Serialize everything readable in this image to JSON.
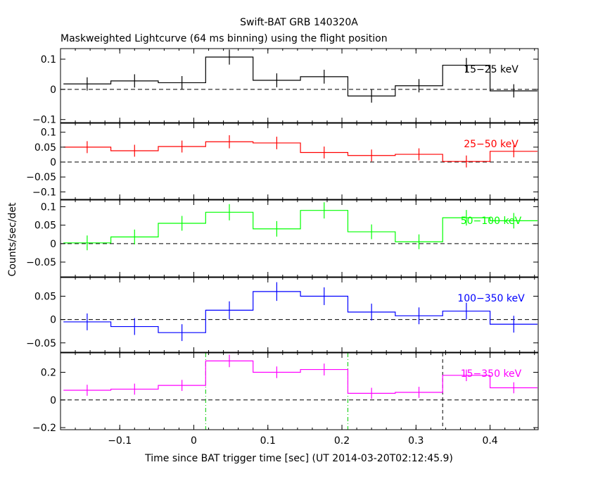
{
  "title": "Swift-BAT GRB 140320A",
  "subtitle": "Maskweighted Lightcurve (64 ms binning) using the flight position",
  "chart_data": {
    "type": "line",
    "style": "step histogram with error bars, stacked panels",
    "xlabel": "Time since BAT trigger time [sec] (UT 2014-03-20T02:12:45.9)",
    "ylabel": "Counts/sec/det",
    "xlim": [
      -0.18,
      0.465
    ],
    "x_ticks": [
      -0.1,
      0,
      0.1,
      0.2,
      0.3,
      0.4
    ],
    "x_tick_labels": [
      "−0.1",
      "0",
      "0.1",
      "0.2",
      "0.3",
      "0.4"
    ],
    "bin_edges": [
      -0.176,
      -0.112,
      -0.048,
      0.016,
      0.08,
      0.144,
      0.208,
      0.272,
      0.336,
      0.4,
      0.464
    ],
    "vertical_markers": [
      {
        "x": 0.016,
        "color": "#00cc00",
        "style": "dash-dot"
      },
      {
        "x": 0.208,
        "color": "#00cc00",
        "style": "dash-dot"
      },
      {
        "x": 0.336,
        "color": "#000000",
        "style": "dashed"
      }
    ],
    "panels": [
      {
        "name": "15−25 keV",
        "color": "#000000",
        "ylim": [
          -0.11,
          0.135
        ],
        "y_ticks": [
          -0.1,
          0,
          0.1
        ],
        "y_tick_labels": [
          "−0.1",
          "0",
          "0.1"
        ],
        "values": [
          0.018,
          0.028,
          0.022,
          0.107,
          0.03,
          0.042,
          -0.022,
          0.012,
          0.08,
          -0.005
        ],
        "errors": [
          0.022,
          0.022,
          0.022,
          0.025,
          0.023,
          0.023,
          0.022,
          0.022,
          0.024,
          0.022
        ]
      },
      {
        "name": "25−50 keV",
        "color": "#ff0000",
        "ylim": [
          -0.125,
          0.13
        ],
        "y_ticks": [
          -0.1,
          -0.05,
          0,
          0.05,
          0.1
        ],
        "y_tick_labels": [
          "−0.1",
          "−0.05",
          "0",
          "0.05",
          "0.1"
        ],
        "values": [
          0.05,
          0.038,
          0.052,
          0.068,
          0.064,
          0.032,
          0.022,
          0.026,
          0.002,
          0.036
        ],
        "errors": [
          0.02,
          0.02,
          0.02,
          0.022,
          0.021,
          0.02,
          0.02,
          0.02,
          0.02,
          0.02
        ]
      },
      {
        "name": "50−100 keV",
        "color": "#00ff00",
        "ylim": [
          -0.09,
          0.118
        ],
        "y_ticks": [
          -0.05,
          0,
          0.05,
          0.1
        ],
        "y_tick_labels": [
          "−0.05",
          "0",
          "0.05",
          "0.1"
        ],
        "values": [
          0.002,
          0.018,
          0.055,
          0.085,
          0.04,
          0.09,
          0.032,
          0.005,
          0.07,
          0.062
        ],
        "errors": [
          0.02,
          0.02,
          0.02,
          0.022,
          0.021,
          0.022,
          0.02,
          0.02,
          0.021,
          0.021
        ]
      },
      {
        "name": "100−350 keV",
        "color": "#0000ff",
        "ylim": [
          -0.07,
          0.09
        ],
        "y_ticks": [
          -0.05,
          0,
          0.05
        ],
        "y_tick_labels": [
          "−0.05",
          "0",
          "0.05"
        ],
        "values": [
          -0.005,
          -0.015,
          -0.028,
          0.02,
          0.06,
          0.05,
          0.016,
          0.008,
          0.018,
          -0.01
        ],
        "errors": [
          0.018,
          0.018,
          0.018,
          0.019,
          0.02,
          0.019,
          0.018,
          0.018,
          0.018,
          0.018
        ]
      },
      {
        "name": "15−350 keV",
        "color": "#ff00ff",
        "ylim": [
          -0.215,
          0.34
        ],
        "y_ticks": [
          -0.2,
          0,
          0.2
        ],
        "y_tick_labels": [
          "−0.2",
          "0",
          "0.2"
        ],
        "values": [
          0.07,
          0.078,
          0.105,
          0.282,
          0.2,
          0.22,
          0.048,
          0.055,
          0.178,
          0.088
        ],
        "errors": [
          0.04,
          0.04,
          0.04,
          0.045,
          0.042,
          0.043,
          0.04,
          0.04,
          0.042,
          0.04
        ]
      }
    ]
  }
}
